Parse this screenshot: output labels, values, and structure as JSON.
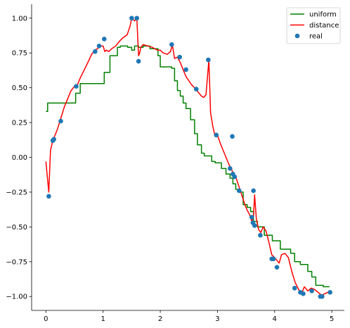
{
  "chart_data": {
    "type": "line",
    "xlim": [
      -0.25,
      5.22
    ],
    "ylim": [
      -1.1,
      1.1
    ],
    "x_ticks": [
      0,
      1,
      2,
      3,
      4,
      5
    ],
    "y_ticks": [
      -1.0,
      -0.75,
      -0.5,
      -0.25,
      0.0,
      0.25,
      0.5,
      0.75,
      1.0
    ],
    "x_tick_labels": [
      "0",
      "1",
      "2",
      "3",
      "4",
      "5"
    ],
    "y_tick_labels": [
      "−1.00",
      "−0.75",
      "−0.50",
      "−0.25",
      "0.00",
      "0.25",
      "0.50",
      "0.75",
      "1.00"
    ],
    "grid": false,
    "legend_position": "top-right",
    "series": [
      {
        "name": "uniform",
        "kind": "line",
        "color": "#008000",
        "x": [
          0.0,
          0.03,
          0.03,
          0.52,
          0.52,
          0.6,
          0.6,
          1.02,
          1.02,
          1.12,
          1.12,
          1.25,
          1.25,
          1.3,
          1.3,
          1.43,
          1.43,
          1.5,
          1.5,
          1.55,
          1.55,
          1.62,
          1.62,
          1.7,
          1.7,
          1.82,
          1.82,
          1.96,
          1.96,
          2.0,
          2.0,
          2.2,
          2.2,
          2.25,
          2.25,
          2.3,
          2.3,
          2.35,
          2.35,
          2.4,
          2.4,
          2.45,
          2.45,
          2.53,
          2.53,
          2.6,
          2.6,
          2.65,
          2.65,
          2.72,
          2.72,
          2.77,
          2.77,
          2.9,
          2.9,
          2.96,
          2.96,
          3.07,
          3.07,
          3.15,
          3.15,
          3.22,
          3.22,
          3.27,
          3.27,
          3.32,
          3.32,
          3.38,
          3.38,
          3.45,
          3.45,
          3.52,
          3.52,
          3.58,
          3.58,
          3.63,
          3.63,
          3.7,
          3.7,
          3.82,
          3.82,
          3.96,
          3.96,
          4.1,
          4.1,
          4.28,
          4.28,
          4.35,
          4.35,
          4.45,
          4.45,
          4.58,
          4.58,
          4.65,
          4.65,
          4.72,
          4.72,
          4.85,
          4.85,
          4.96
        ],
        "y": [
          0.33,
          0.33,
          0.39,
          0.39,
          0.46,
          0.46,
          0.53,
          0.53,
          0.61,
          0.61,
          0.73,
          0.73,
          0.79,
          0.79,
          0.8,
          0.8,
          0.79,
          0.79,
          0.77,
          0.77,
          0.8,
          0.8,
          0.79,
          0.79,
          0.8,
          0.8,
          0.78,
          0.78,
          0.73,
          0.73,
          0.65,
          0.65,
          0.64,
          0.64,
          0.55,
          0.55,
          0.48,
          0.48,
          0.44,
          0.44,
          0.39,
          0.39,
          0.35,
          0.35,
          0.27,
          0.27,
          0.17,
          0.17,
          0.09,
          0.09,
          0.03,
          0.03,
          0.01,
          0.01,
          -0.03,
          -0.03,
          -0.04,
          -0.04,
          -0.08,
          -0.08,
          -0.12,
          -0.12,
          -0.15,
          -0.15,
          -0.19,
          -0.19,
          -0.23,
          -0.23,
          -0.25,
          -0.25,
          -0.34,
          -0.34,
          -0.36,
          -0.36,
          -0.39,
          -0.39,
          -0.46,
          -0.46,
          -0.5,
          -0.5,
          -0.56,
          -0.56,
          -0.6,
          -0.6,
          -0.66,
          -0.66,
          -0.69,
          -0.69,
          -0.75,
          -0.75,
          -0.77,
          -0.77,
          -0.82,
          -0.82,
          -0.86,
          -0.86,
          -0.92,
          -0.92,
          -0.93,
          -0.93
        ]
      },
      {
        "name": "distance",
        "kind": "line",
        "color": "#ff0000",
        "x": [
          0.0,
          0.02,
          0.05,
          0.08,
          0.12,
          0.16,
          0.2,
          0.26,
          0.32,
          0.38,
          0.44,
          0.5,
          0.53,
          0.56,
          0.6,
          0.66,
          0.72,
          0.8,
          0.85,
          0.9,
          0.95,
          1.0,
          1.03,
          1.06,
          1.1,
          1.15,
          1.22,
          1.3,
          1.35,
          1.42,
          1.47,
          1.5,
          1.55,
          1.59,
          1.62,
          1.64,
          1.66,
          1.7,
          1.78,
          1.86,
          1.95,
          2.0,
          2.05,
          2.12,
          2.18,
          2.21,
          2.25,
          2.3,
          2.35,
          2.4,
          2.45,
          2.5,
          2.55,
          2.6,
          2.64,
          2.68,
          2.72,
          2.76,
          2.8,
          2.83,
          2.85,
          2.88,
          2.92,
          2.96,
          3.0,
          3.05,
          3.1,
          3.15,
          3.2,
          3.25,
          3.28,
          3.32,
          3.36,
          3.4,
          3.44,
          3.48,
          3.52,
          3.56,
          3.6,
          3.63,
          3.65,
          3.68,
          3.72,
          3.76,
          3.8,
          3.85,
          3.9,
          3.95,
          4.0,
          4.04,
          4.08,
          4.12,
          4.18,
          4.24,
          4.3,
          4.36,
          4.42,
          4.47,
          4.52,
          4.58,
          4.64,
          4.7,
          4.76,
          4.82,
          4.88,
          4.93,
          4.96
        ],
        "y": [
          -0.03,
          -0.12,
          -0.25,
          0.05,
          0.12,
          0.16,
          0.2,
          0.28,
          0.36,
          0.42,
          0.48,
          0.51,
          0.5,
          0.53,
          0.57,
          0.62,
          0.67,
          0.74,
          0.77,
          0.78,
          0.8,
          0.8,
          0.76,
          0.77,
          0.76,
          0.78,
          0.8,
          0.84,
          0.86,
          0.88,
          0.94,
          1.0,
          0.98,
          1.0,
          0.73,
          0.75,
          0.79,
          0.81,
          0.8,
          0.79,
          0.77,
          0.77,
          0.75,
          0.74,
          0.76,
          0.81,
          0.71,
          0.72,
          0.68,
          0.63,
          0.58,
          0.55,
          0.52,
          0.5,
          0.48,
          0.46,
          0.44,
          0.43,
          0.45,
          0.6,
          0.7,
          0.32,
          0.22,
          0.15,
          0.16,
          0.1,
          0.05,
          0.0,
          -0.05,
          -0.09,
          -0.12,
          -0.14,
          -0.19,
          -0.24,
          -0.29,
          -0.34,
          -0.38,
          -0.41,
          -0.46,
          -0.43,
          -0.27,
          -0.44,
          -0.52,
          -0.54,
          -0.5,
          -0.53,
          -0.61,
          -0.7,
          -0.72,
          -0.74,
          -0.76,
          -0.7,
          -0.69,
          -0.72,
          -0.82,
          -0.9,
          -0.95,
          -0.98,
          -0.93,
          -0.96,
          -0.94,
          -0.95,
          -0.97,
          -0.99,
          -0.98,
          -0.97,
          -0.96
        ]
      },
      {
        "name": "real",
        "kind": "scatter",
        "color": "#1f77b4",
        "x": [
          0.05,
          0.12,
          0.14,
          0.26,
          0.53,
          0.86,
          0.93,
          1.02,
          1.5,
          1.59,
          1.62,
          2.2,
          2.34,
          2.45,
          2.63,
          2.84,
          2.98,
          3.22,
          3.26,
          3.27,
          3.3,
          3.38,
          3.6,
          3.62,
          3.63,
          3.65,
          3.75,
          3.95,
          3.98,
          4.04,
          4.35,
          4.45,
          4.5,
          4.65,
          4.8,
          4.83,
          4.97
        ],
        "y": [
          -0.28,
          0.12,
          0.13,
          0.26,
          0.51,
          0.76,
          0.8,
          0.85,
          1.0,
          1.0,
          0.69,
          0.81,
          0.72,
          0.63,
          0.49,
          0.7,
          0.16,
          -0.08,
          0.15,
          -0.12,
          -0.14,
          -0.24,
          -0.43,
          -0.47,
          -0.24,
          -0.49,
          -0.56,
          -0.73,
          -0.73,
          -0.79,
          -0.94,
          -0.97,
          -0.98,
          -0.96,
          -1.0,
          -1.0,
          -0.97
        ]
      }
    ]
  }
}
